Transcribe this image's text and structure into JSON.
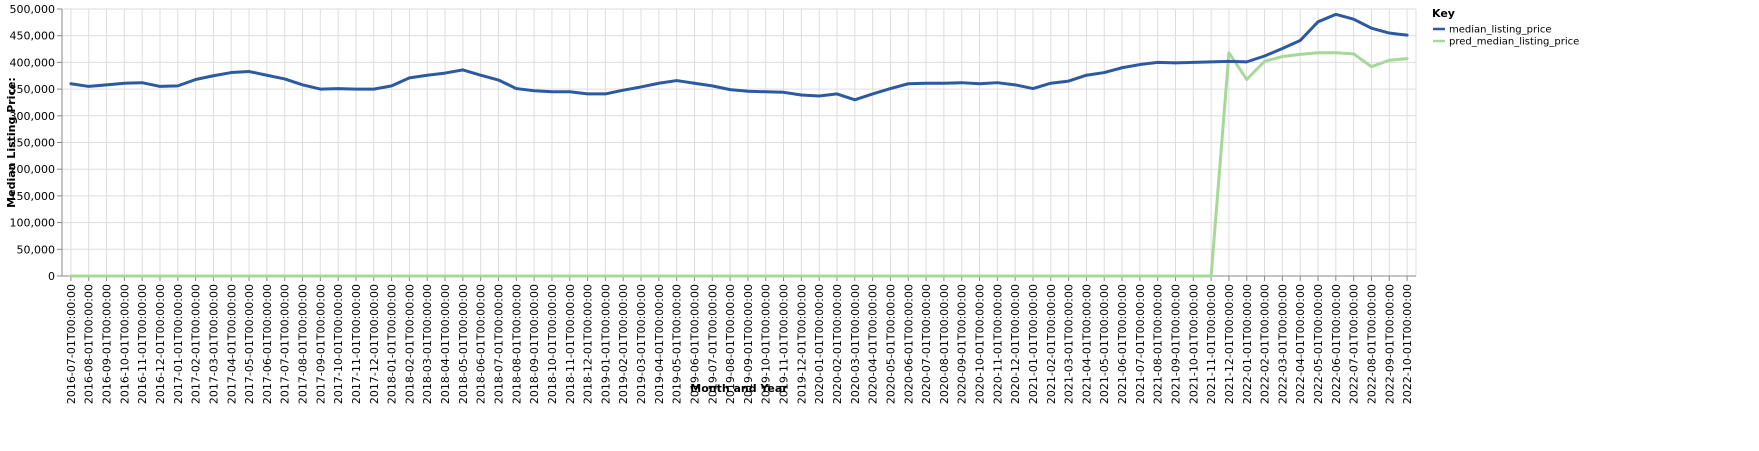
{
  "chart_data": {
    "type": "line",
    "xlabel": "Month and Year",
    "ylabel": "Median Listing Price:",
    "ylim": [
      0,
      500000
    ],
    "y_ticks": [
      "0",
      "50,000",
      "100,000",
      "150,000",
      "200,000",
      "250,000",
      "300,000",
      "350,000",
      "400,000",
      "450,000",
      "500,000"
    ],
    "grid": true,
    "legend": {
      "title": "Key",
      "placement": "right"
    },
    "x": [
      "2016-07-01T00:00:00",
      "2016-08-01T00:00:00",
      "2016-09-01T00:00:00",
      "2016-10-01T00:00:00",
      "2016-11-01T00:00:00",
      "2016-12-01T00:00:00",
      "2017-01-01T00:00:00",
      "2017-02-01T00:00:00",
      "2017-03-01T00:00:00",
      "2017-04-01T00:00:00",
      "2017-05-01T00:00:00",
      "2017-06-01T00:00:00",
      "2017-07-01T00:00:00",
      "2017-08-01T00:00:00",
      "2017-09-01T00:00:00",
      "2017-10-01T00:00:00",
      "2017-11-01T00:00:00",
      "2017-12-01T00:00:00",
      "2018-01-01T00:00:00",
      "2018-02-01T00:00:00",
      "2018-03-01T00:00:00",
      "2018-04-01T00:00:00",
      "2018-05-01T00:00:00",
      "2018-06-01T00:00:00",
      "2018-07-01T00:00:00",
      "2018-08-01T00:00:00",
      "2018-09-01T00:00:00",
      "2018-10-01T00:00:00",
      "2018-11-01T00:00:00",
      "2018-12-01T00:00:00",
      "2019-01-01T00:00:00",
      "2019-02-01T00:00:00",
      "2019-03-01T00:00:00",
      "2019-04-01T00:00:00",
      "2019-05-01T00:00:00",
      "2019-06-01T00:00:00",
      "2019-07-01T00:00:00",
      "2019-08-01T00:00:00",
      "2019-09-01T00:00:00",
      "2019-10-01T00:00:00",
      "2019-11-01T00:00:00",
      "2019-12-01T00:00:00",
      "2020-01-01T00:00:00",
      "2020-02-01T00:00:00",
      "2020-03-01T00:00:00",
      "2020-04-01T00:00:00",
      "2020-05-01T00:00:00",
      "2020-06-01T00:00:00",
      "2020-07-01T00:00:00",
      "2020-08-01T00:00:00",
      "2020-09-01T00:00:00",
      "2020-10-01T00:00:00",
      "2020-11-01T00:00:00",
      "2020-12-01T00:00:00",
      "2021-01-01T00:00:00",
      "2021-02-01T00:00:00",
      "2021-03-01T00:00:00",
      "2021-04-01T00:00:00",
      "2021-05-01T00:00:00",
      "2021-06-01T00:00:00",
      "2021-07-01T00:00:00",
      "2021-08-01T00:00:00",
      "2021-09-01T00:00:00",
      "2021-10-01T00:00:00",
      "2021-11-01T00:00:00",
      "2021-12-01T00:00:00",
      "2022-01-01T00:00:00",
      "2022-02-01T00:00:00",
      "2022-03-01T00:00:00",
      "2022-04-01T00:00:00",
      "2022-05-01T00:00:00",
      "2022-06-01T00:00:00",
      "2022-07-01T00:00:00",
      "2022-08-01T00:00:00",
      "2022-09-01T00:00:00",
      "2022-10-01T00:00:00"
    ],
    "series": [
      {
        "name": "median_listing_price",
        "color": "#2c5aa0",
        "values": [
          360000,
          355000,
          358000,
          361000,
          362000,
          355000,
          356000,
          368000,
          375000,
          381000,
          383000,
          376000,
          369000,
          358000,
          350000,
          351000,
          350000,
          350000,
          356000,
          371000,
          376000,
          380000,
          386000,
          376000,
          367000,
          351000,
          347000,
          345000,
          345000,
          341000,
          341000,
          348000,
          354000,
          361000,
          366000,
          361000,
          356000,
          349000,
          346000,
          345000,
          344000,
          339000,
          337000,
          341000,
          330000,
          341000,
          351000,
          360000,
          361000,
          361000,
          362000,
          360000,
          362000,
          358000,
          351000,
          361000,
          365000,
          376000,
          381000,
          390000,
          396000,
          400000,
          399000,
          400000,
          401000,
          402000,
          401000,
          412000,
          426000,
          441000,
          476000,
          490000,
          481000,
          464000,
          455000,
          451000
        ]
      },
      {
        "name": "pred_median_listing_price",
        "color": "#a6d89a",
        "values": [
          0,
          0,
          0,
          0,
          0,
          0,
          0,
          0,
          0,
          0,
          0,
          0,
          0,
          0,
          0,
          0,
          0,
          0,
          0,
          0,
          0,
          0,
          0,
          0,
          0,
          0,
          0,
          0,
          0,
          0,
          0,
          0,
          0,
          0,
          0,
          0,
          0,
          0,
          0,
          0,
          0,
          0,
          0,
          0,
          0,
          0,
          0,
          0,
          0,
          0,
          0,
          0,
          0,
          0,
          0,
          0,
          0,
          0,
          0,
          0,
          0,
          0,
          0,
          0,
          0,
          418000,
          368000,
          402000,
          411000,
          415000,
          418000,
          418000,
          416000,
          392000,
          404000,
          407000
        ]
      }
    ]
  }
}
